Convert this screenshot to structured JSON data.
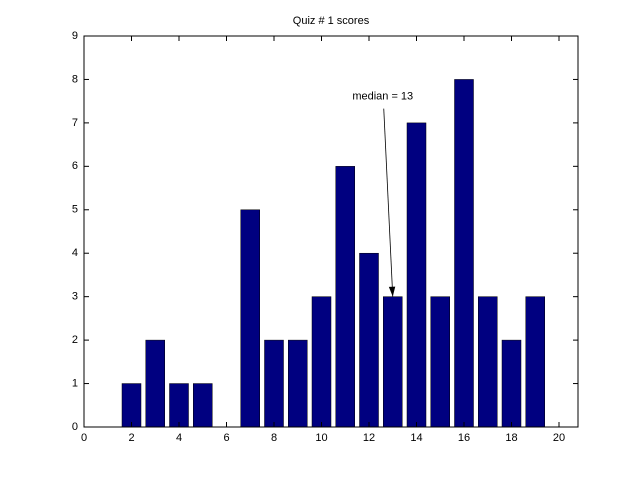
{
  "chart_data": {
    "type": "bar",
    "title": "Quiz # 1 scores",
    "x": [
      2,
      3,
      4,
      5,
      7,
      8,
      9,
      10,
      11,
      12,
      13,
      14,
      15,
      16,
      17,
      18,
      19
    ],
    "values": [
      1,
      2,
      1,
      1,
      5,
      2,
      2,
      3,
      6,
      4,
      3,
      7,
      3,
      8,
      3,
      2,
      3
    ],
    "color": "#000080",
    "xlim": [
      0,
      20.8
    ],
    "xticks": [
      0,
      2,
      4,
      6,
      8,
      10,
      12,
      14,
      16,
      18,
      20
    ],
    "ylim": [
      0,
      9
    ],
    "yticks": [
      0,
      1,
      2,
      3,
      4,
      5,
      6,
      7,
      8,
      9
    ],
    "annotation": {
      "text": "median = 13",
      "x": 13,
      "y": 3
    }
  }
}
